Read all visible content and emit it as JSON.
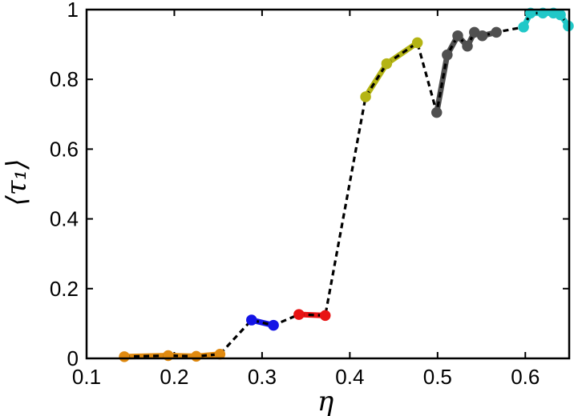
{
  "chart_data": {
    "type": "line",
    "title": "",
    "xlabel": "η",
    "ylabel": "⟨τ₁⟩",
    "xlim": [
      0.1,
      0.65
    ],
    "ylim": [
      0,
      1
    ],
    "xticks": [
      0.1,
      0.2,
      0.3,
      0.4,
      0.5,
      0.6
    ],
    "yticks": [
      0,
      0.2,
      0.4,
      0.6,
      0.8,
      1
    ],
    "xtick_labels": [
      "0.1",
      "0.2",
      "0.3",
      "0.4",
      "0.5",
      "0.6"
    ],
    "ytick_labels": [
      "0",
      "0.2",
      "0.4",
      "0.6",
      "0.8",
      "1"
    ],
    "grid": false,
    "legend": "none",
    "connector": {
      "style": "dashed",
      "color": "#000000"
    },
    "series": [
      {
        "color": "#e08a10",
        "x": [
          0.143,
          0.193,
          0.225,
          0.252
        ],
        "y": [
          0.005,
          0.008,
          0.006,
          0.012
        ]
      },
      {
        "color": "#1414e6",
        "x": [
          0.288,
          0.313
        ],
        "y": [
          0.11,
          0.095
        ]
      },
      {
        "color": "#e81414",
        "x": [
          0.342,
          0.372
        ],
        "y": [
          0.126,
          0.123
        ]
      },
      {
        "color": "#b4b414",
        "x": [
          0.418,
          0.442,
          0.477
        ],
        "y": [
          0.75,
          0.845,
          0.905
        ]
      },
      {
        "color": "#505050",
        "x": [
          0.499,
          0.511,
          0.523,
          0.534,
          0.542,
          0.551,
          0.567
        ],
        "y": [
          0.705,
          0.87,
          0.925,
          0.895,
          0.935,
          0.925,
          0.935
        ]
      },
      {
        "color": "#20c8c8",
        "x": [
          0.598,
          0.606,
          0.62,
          0.632,
          0.64,
          0.649
        ],
        "y": [
          0.95,
          0.99,
          0.99,
          0.99,
          0.985,
          0.953
        ]
      }
    ]
  }
}
